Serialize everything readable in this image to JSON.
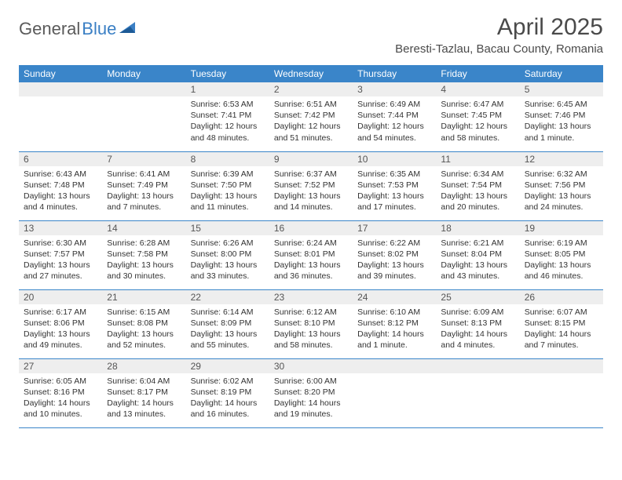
{
  "brand": {
    "name1": "General",
    "name2": "Blue"
  },
  "title": "April 2025",
  "location": "Beresti-Tazlau, Bacau County, Romania",
  "colors": {
    "header_bg": "#3a85c9",
    "header_text": "#ffffff",
    "daynum_bg": "#eeeeee",
    "border": "#3a85c9",
    "brand_gray": "#5a5a5a",
    "brand_blue": "#3a7fc4"
  },
  "weekdays": [
    "Sunday",
    "Monday",
    "Tuesday",
    "Wednesday",
    "Thursday",
    "Friday",
    "Saturday"
  ],
  "weeks": [
    [
      null,
      null,
      {
        "n": "1",
        "sunrise": "6:53 AM",
        "sunset": "7:41 PM",
        "daylight": "12 hours and 48 minutes."
      },
      {
        "n": "2",
        "sunrise": "6:51 AM",
        "sunset": "7:42 PM",
        "daylight": "12 hours and 51 minutes."
      },
      {
        "n": "3",
        "sunrise": "6:49 AM",
        "sunset": "7:44 PM",
        "daylight": "12 hours and 54 minutes."
      },
      {
        "n": "4",
        "sunrise": "6:47 AM",
        "sunset": "7:45 PM",
        "daylight": "12 hours and 58 minutes."
      },
      {
        "n": "5",
        "sunrise": "6:45 AM",
        "sunset": "7:46 PM",
        "daylight": "13 hours and 1 minute."
      }
    ],
    [
      {
        "n": "6",
        "sunrise": "6:43 AM",
        "sunset": "7:48 PM",
        "daylight": "13 hours and 4 minutes."
      },
      {
        "n": "7",
        "sunrise": "6:41 AM",
        "sunset": "7:49 PM",
        "daylight": "13 hours and 7 minutes."
      },
      {
        "n": "8",
        "sunrise": "6:39 AM",
        "sunset": "7:50 PM",
        "daylight": "13 hours and 11 minutes."
      },
      {
        "n": "9",
        "sunrise": "6:37 AM",
        "sunset": "7:52 PM",
        "daylight": "13 hours and 14 minutes."
      },
      {
        "n": "10",
        "sunrise": "6:35 AM",
        "sunset": "7:53 PM",
        "daylight": "13 hours and 17 minutes."
      },
      {
        "n": "11",
        "sunrise": "6:34 AM",
        "sunset": "7:54 PM",
        "daylight": "13 hours and 20 minutes."
      },
      {
        "n": "12",
        "sunrise": "6:32 AM",
        "sunset": "7:56 PM",
        "daylight": "13 hours and 24 minutes."
      }
    ],
    [
      {
        "n": "13",
        "sunrise": "6:30 AM",
        "sunset": "7:57 PM",
        "daylight": "13 hours and 27 minutes."
      },
      {
        "n": "14",
        "sunrise": "6:28 AM",
        "sunset": "7:58 PM",
        "daylight": "13 hours and 30 minutes."
      },
      {
        "n": "15",
        "sunrise": "6:26 AM",
        "sunset": "8:00 PM",
        "daylight": "13 hours and 33 minutes."
      },
      {
        "n": "16",
        "sunrise": "6:24 AM",
        "sunset": "8:01 PM",
        "daylight": "13 hours and 36 minutes."
      },
      {
        "n": "17",
        "sunrise": "6:22 AM",
        "sunset": "8:02 PM",
        "daylight": "13 hours and 39 minutes."
      },
      {
        "n": "18",
        "sunrise": "6:21 AM",
        "sunset": "8:04 PM",
        "daylight": "13 hours and 43 minutes."
      },
      {
        "n": "19",
        "sunrise": "6:19 AM",
        "sunset": "8:05 PM",
        "daylight": "13 hours and 46 minutes."
      }
    ],
    [
      {
        "n": "20",
        "sunrise": "6:17 AM",
        "sunset": "8:06 PM",
        "daylight": "13 hours and 49 minutes."
      },
      {
        "n": "21",
        "sunrise": "6:15 AM",
        "sunset": "8:08 PM",
        "daylight": "13 hours and 52 minutes."
      },
      {
        "n": "22",
        "sunrise": "6:14 AM",
        "sunset": "8:09 PM",
        "daylight": "13 hours and 55 minutes."
      },
      {
        "n": "23",
        "sunrise": "6:12 AM",
        "sunset": "8:10 PM",
        "daylight": "13 hours and 58 minutes."
      },
      {
        "n": "24",
        "sunrise": "6:10 AM",
        "sunset": "8:12 PM",
        "daylight": "14 hours and 1 minute."
      },
      {
        "n": "25",
        "sunrise": "6:09 AM",
        "sunset": "8:13 PM",
        "daylight": "14 hours and 4 minutes."
      },
      {
        "n": "26",
        "sunrise": "6:07 AM",
        "sunset": "8:15 PM",
        "daylight": "14 hours and 7 minutes."
      }
    ],
    [
      {
        "n": "27",
        "sunrise": "6:05 AM",
        "sunset": "8:16 PM",
        "daylight": "14 hours and 10 minutes."
      },
      {
        "n": "28",
        "sunrise": "6:04 AM",
        "sunset": "8:17 PM",
        "daylight": "14 hours and 13 minutes."
      },
      {
        "n": "29",
        "sunrise": "6:02 AM",
        "sunset": "8:19 PM",
        "daylight": "14 hours and 16 minutes."
      },
      {
        "n": "30",
        "sunrise": "6:00 AM",
        "sunset": "8:20 PM",
        "daylight": "14 hours and 19 minutes."
      },
      null,
      null,
      null
    ]
  ],
  "labels": {
    "sunrise": "Sunrise:",
    "sunset": "Sunset:",
    "daylight": "Daylight:"
  }
}
